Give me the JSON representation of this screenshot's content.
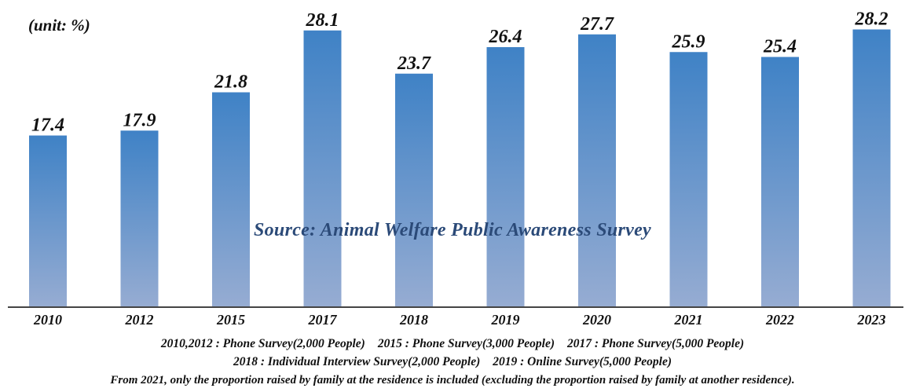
{
  "chart_data": {
    "type": "bar",
    "unit_label": "(unit: %)",
    "categories": [
      "2010",
      "2012",
      "2015",
      "2017",
      "2018",
      "2019",
      "2020",
      "2021",
      "2022",
      "2023"
    ],
    "values": [
      17.4,
      17.9,
      21.8,
      28.1,
      23.7,
      26.4,
      27.7,
      25.9,
      25.4,
      28.2
    ],
    "ylim": [
      0,
      30
    ],
    "grid": false,
    "watermark": "Source: Animal Welfare Public Awareness Survey",
    "colors": {
      "bar_top": "#3f82c6",
      "bar_bottom": "#96acd2",
      "axis": "#444444"
    }
  },
  "notes": {
    "line1": [
      "2010,2012 : Phone Survey(2,000 People)",
      "2015 : Phone Survey(3,000 People)",
      "2017 : Phone Survey(5,000 People)"
    ],
    "line2": [
      "2018 : Individual Interview Survey(2,000 People)",
      "2019 : Online Survey(5,000 People)"
    ],
    "line3": "From 2021, only the proportion raised by family at the residence is included (excluding the proportion raised by family at another residence)."
  }
}
